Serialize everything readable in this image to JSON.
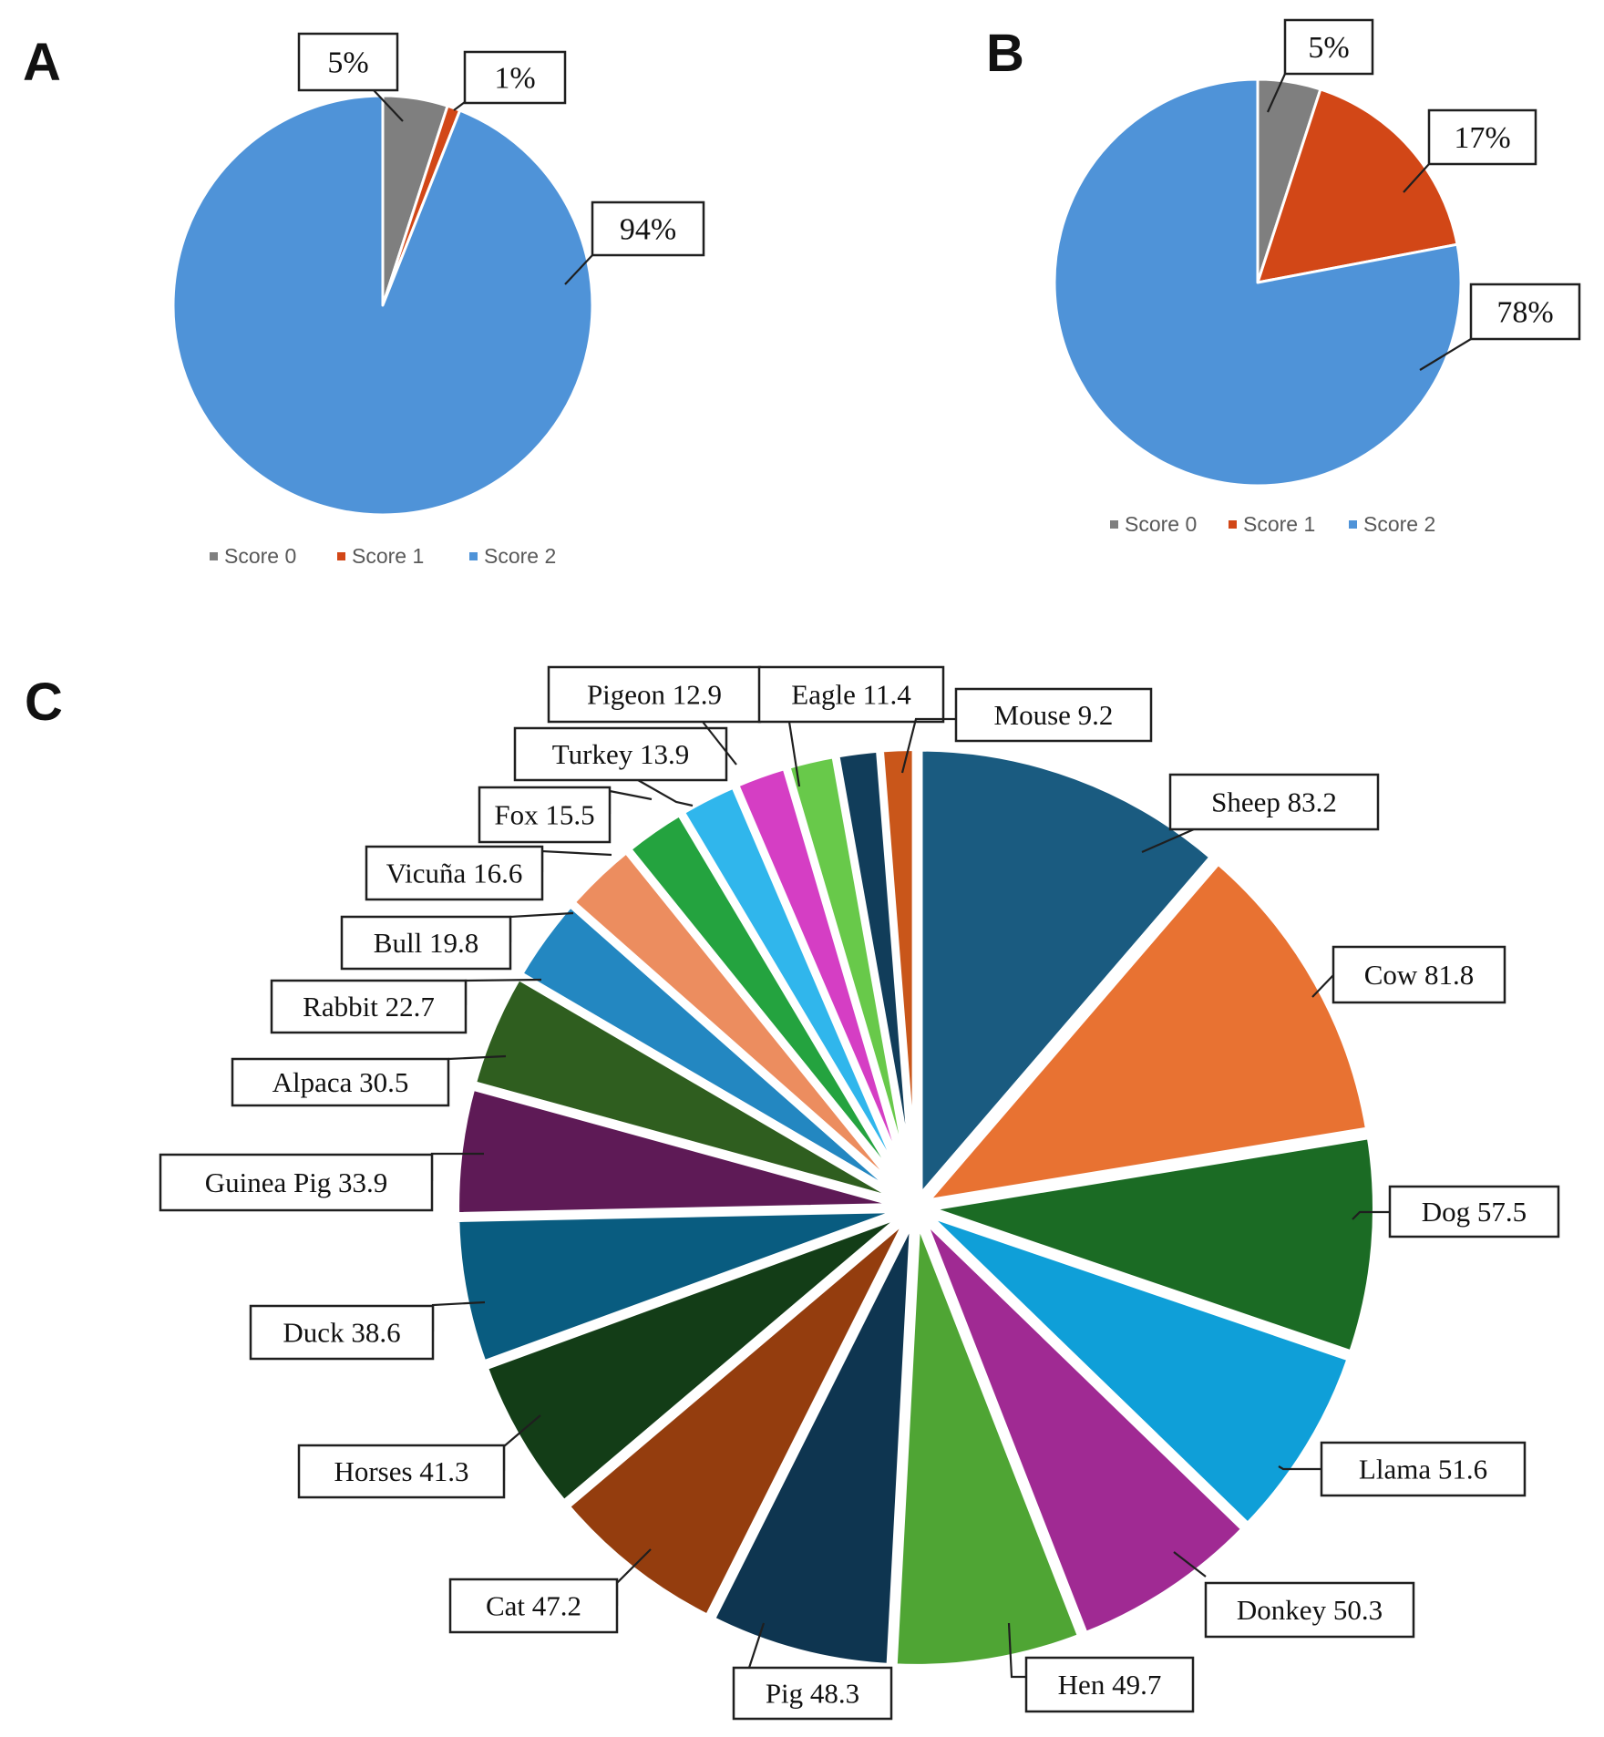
{
  "chart_data": [
    {
      "panel": "A",
      "type": "pie",
      "title": "",
      "categories": [
        "Score 0",
        "Score 1",
        "Score 2"
      ],
      "values": [
        5,
        1,
        94
      ],
      "labels": [
        "5%",
        "1%",
        "94%"
      ],
      "colors": [
        "#7f7f7f",
        "#d24717",
        "#4f93d8"
      ],
      "legend": [
        "Score 0",
        "Score 1",
        "Score 2"
      ],
      "legend_position": "bottom"
    },
    {
      "panel": "B",
      "type": "pie",
      "title": "",
      "categories": [
        "Score 0",
        "Score 1",
        "Score 2"
      ],
      "values": [
        5,
        17,
        78
      ],
      "labels": [
        "5%",
        "17%",
        "78%"
      ],
      "colors": [
        "#7f7f7f",
        "#d24717",
        "#4f93d8"
      ],
      "legend": [
        "Score 0",
        "Score 1",
        "Score 2"
      ],
      "legend_position": "bottom"
    },
    {
      "panel": "C",
      "type": "pie",
      "title": "",
      "categories": [
        "Sheep",
        "Cow",
        "Dog",
        "Llama",
        "Donkey",
        "Hen",
        "Pig",
        "Cat",
        "Horses",
        "Duck",
        "Guinea Pig",
        "Alpaca",
        "Rabbit",
        "Bull",
        "Vicuña",
        "Fox",
        "Turkey",
        "Pigeon",
        "Eagle",
        "Mouse"
      ],
      "values": [
        83.2,
        81.8,
        57.5,
        51.6,
        50.3,
        49.7,
        48.3,
        47.2,
        41.3,
        38.6,
        33.9,
        30.5,
        22.7,
        19.8,
        16.6,
        15.5,
        13.9,
        12.9,
        11.4,
        9.2
      ],
      "labels": [
        "Sheep 83.2",
        "Cow 81.8",
        "Dog 57.5",
        "Llama 51.6",
        "Donkey 50.3",
        "Hen 49.7",
        "Pig 48.3",
        "Cat 47.2",
        "Horses 41.3",
        "Duck 38.6",
        "Guinea Pig 33.9",
        "Alpaca 30.5",
        "Rabbit 22.7",
        "Bull 19.8",
        "Vicuña 16.6",
        "Fox 15.5",
        "Turkey 13.9",
        "Pigeon 12.9",
        "Eagle 11.4",
        "Mouse 9.2"
      ],
      "colors": [
        "#1a5b80",
        "#e87232",
        "#1b6b24",
        "#0f9fd8",
        "#a02a93",
        "#4fa534",
        "#0e3550",
        "#943d0e",
        "#133d17",
        "#095c80",
        "#5e1a56",
        "#2f5e1f",
        "#2387c1",
        "#ec8d5f",
        "#24a33f",
        "#30b6ec",
        "#d53ec4",
        "#68c94a",
        "#113d5a",
        "#c9561a"
      ]
    }
  ]
}
